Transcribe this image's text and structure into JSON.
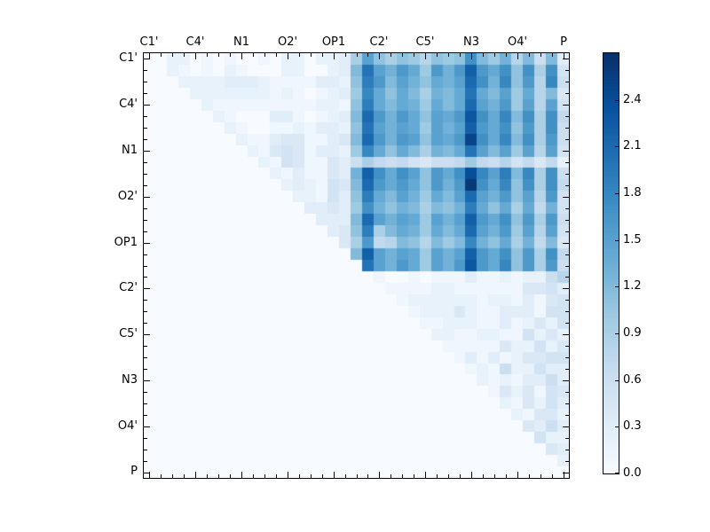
{
  "figure": {
    "background": "#ffffff",
    "title": ""
  },
  "chart_data": {
    "type": "heatmap",
    "n": 37,
    "orientation": "upper-triangle",
    "x_axis": {
      "tick_labels": [
        "C1'",
        "C4'",
        "N1",
        "O2'",
        "OP1",
        "C2'",
        "C5'",
        "N3",
        "O4'",
        "P"
      ],
      "tick_indices": [
        0,
        4,
        8,
        12,
        16,
        20,
        24,
        28,
        32,
        36
      ],
      "minor_tick_every": 1,
      "labels_side": "top"
    },
    "y_axis": {
      "tick_labels": [
        "C1'",
        "C4'",
        "N1",
        "O2'",
        "OP1",
        "C2'",
        "C5'",
        "N3",
        "O4'",
        "P"
      ],
      "tick_indices": [
        0,
        4,
        8,
        12,
        16,
        20,
        24,
        28,
        32,
        36
      ],
      "minor_tick_every": 1,
      "labels_side": "left"
    },
    "colorbar": {
      "vmin": 0.0,
      "vmax": 2.7,
      "tick_values": [
        0.0,
        0.3,
        0.6,
        0.9,
        1.2,
        1.5,
        1.8,
        2.1,
        2.4
      ],
      "tick_labels": [
        "0.0",
        "0.3",
        "0.6",
        "0.9",
        "1.2",
        "1.5",
        "1.8",
        "2.1",
        "2.4"
      ],
      "colormap": "Blues",
      "colormap_hex": [
        "#f7fbff",
        "#deebf7",
        "#c6dbef",
        "#9ecae1",
        "#6baed6",
        "#4292c6",
        "#2171b5",
        "#08519c",
        "#08306b"
      ]
    },
    "matrix": [
      [
        0,
        0,
        0.2,
        0.2,
        0,
        0.1,
        0,
        0.1,
        0,
        0,
        0.1,
        0,
        0.2,
        0.2,
        0,
        0.2,
        0.2,
        0.3,
        0.9,
        1.5,
        1.1,
        0.9,
        1.1,
        1.0,
        0.8,
        1.1,
        1.0,
        1.1,
        1.7,
        1.2,
        1.0,
        1.3,
        0.8,
        1.2,
        0.6,
        1.2,
        0.3
      ],
      [
        0,
        0,
        0.2,
        0.1,
        0,
        0.1,
        0,
        0.2,
        0.1,
        0,
        0,
        0,
        0.2,
        0.2,
        0,
        0,
        0.2,
        0.3,
        1.2,
        2.0,
        1.5,
        1.3,
        1.6,
        1.4,
        1.0,
        1.6,
        1.3,
        1.6,
        2.2,
        1.6,
        1.4,
        1.7,
        1.1,
        1.7,
        0.9,
        1.7,
        0.5
      ],
      [
        0,
        0,
        0,
        0.2,
        0.2,
        0.2,
        0.2,
        0.3,
        0.3,
        0.3,
        0.2,
        0.1,
        0.1,
        0.1,
        0.1,
        0.3,
        0.3,
        0.2,
        1.1,
        1.9,
        1.6,
        1.2,
        1.5,
        1.3,
        1.1,
        1.4,
        1.3,
        1.5,
        2.1,
        1.7,
        1.3,
        1.8,
        1.1,
        1.6,
        0.8,
        1.8,
        0.6
      ],
      [
        0,
        0,
        0,
        0,
        0.2,
        0.2,
        0.2,
        0.2,
        0.2,
        0.2,
        0.2,
        0.1,
        0.2,
        0.1,
        0,
        0.1,
        0.2,
        0.3,
        1.0,
        1.8,
        1.4,
        1.1,
        1.4,
        1.2,
        0.9,
        1.3,
        1.2,
        1.4,
        2.0,
        1.4,
        1.2,
        1.5,
        1.0,
        1.4,
        0.8,
        1.2,
        0.4
      ],
      [
        0,
        0,
        0,
        0,
        0,
        0.2,
        0.1,
        0.1,
        0.1,
        0.1,
        0.1,
        0.1,
        0.1,
        0.1,
        0.1,
        0.2,
        0.2,
        0.1,
        1.1,
        1.9,
        1.4,
        1.2,
        1.4,
        1.3,
        1.0,
        1.4,
        1.2,
        1.4,
        2.1,
        1.5,
        1.3,
        1.6,
        1.0,
        1.5,
        0.8,
        1.5,
        0.5
      ],
      [
        0,
        0,
        0,
        0,
        0,
        0,
        0.2,
        0.1,
        0,
        0,
        0,
        0.3,
        0.3,
        0.1,
        0,
        0.1,
        0.2,
        0.3,
        1.2,
        2.1,
        1.6,
        1.3,
        1.6,
        1.4,
        1.1,
        1.5,
        1.4,
        1.6,
        2.3,
        1.7,
        1.4,
        1.8,
        1.2,
        1.7,
        0.9,
        1.7,
        0.7
      ],
      [
        0,
        0,
        0,
        0,
        0,
        0,
        0,
        0.2,
        0.1,
        0,
        0,
        0.1,
        0.1,
        0.2,
        0.1,
        0.3,
        0.3,
        0.2,
        1.1,
        2.0,
        1.5,
        1.3,
        1.5,
        1.4,
        1.0,
        1.5,
        1.3,
        1.5,
        2.2,
        1.6,
        1.4,
        1.7,
        1.1,
        1.6,
        0.9,
        1.7,
        0.6
      ],
      [
        0,
        0,
        0,
        0,
        0,
        0,
        0,
        0,
        0.2,
        0.1,
        0.1,
        0.3,
        0.4,
        0.4,
        0.1,
        0.1,
        0.3,
        0.4,
        1.2,
        2.1,
        1.6,
        1.3,
        1.6,
        1.5,
        1.1,
        1.5,
        1.4,
        1.6,
        2.5,
        1.7,
        1.4,
        1.8,
        1.2,
        1.7,
        0.9,
        1.6,
        0.6
      ],
      [
        0,
        0,
        0,
        0,
        0,
        0,
        0,
        0,
        0,
        0.2,
        0.1,
        0.4,
        0.5,
        0.4,
        0.1,
        0.3,
        0.3,
        0.2,
        1.0,
        1.8,
        1.4,
        1.1,
        1.4,
        1.2,
        0.9,
        1.3,
        1.2,
        1.4,
        2.0,
        1.5,
        1.2,
        1.5,
        1.0,
        1.5,
        0.8,
        1.5,
        0.5
      ],
      [
        0,
        0,
        0,
        0,
        0,
        0,
        0,
        0,
        0,
        0,
        0.2,
        0.1,
        0.5,
        0.4,
        0.1,
        0.1,
        0.4,
        0.3,
        0.6,
        0.9,
        0.7,
        0.6,
        0.7,
        0.5,
        0.4,
        0.6,
        0.6,
        0.7,
        1.0,
        0.7,
        0.6,
        0.8,
        0.5,
        0.7,
        0.4,
        0.7,
        0.2
      ],
      [
        0,
        0,
        0,
        0,
        0,
        0,
        0,
        0,
        0,
        0,
        0,
        0.2,
        0.1,
        0.3,
        0.1,
        0.1,
        0.4,
        0.3,
        1.3,
        2.2,
        1.7,
        1.4,
        1.7,
        1.5,
        1.1,
        1.6,
        1.4,
        1.7,
        2.4,
        1.8,
        1.5,
        1.9,
        1.2,
        1.8,
        0.9,
        1.7,
        0.6
      ],
      [
        0,
        0,
        0,
        0,
        0,
        0,
        0,
        0,
        0,
        0,
        0,
        0,
        0.2,
        0.3,
        0.2,
        0.1,
        0.5,
        0.4,
        1.2,
        2.1,
        1.6,
        1.4,
        1.6,
        1.4,
        1.1,
        1.6,
        1.3,
        1.6,
        2.6,
        1.7,
        1.4,
        1.8,
        1.1,
        1.7,
        0.9,
        1.7,
        0.7
      ],
      [
        0,
        0,
        0,
        0,
        0,
        0,
        0,
        0,
        0,
        0,
        0,
        0,
        0,
        0.2,
        0.2,
        0.1,
        0.5,
        0.3,
        1.1,
        1.9,
        1.4,
        1.2,
        1.5,
        1.3,
        1.0,
        1.4,
        1.2,
        1.5,
        2.1,
        1.5,
        1.3,
        1.6,
        1.1,
        1.5,
        0.8,
        1.6,
        0.5
      ],
      [
        0,
        0,
        0,
        0,
        0,
        0,
        0,
        0,
        0,
        0,
        0,
        0,
        0,
        0,
        0.3,
        0.3,
        0.4,
        0.3,
        1.0,
        1.7,
        1.3,
        1.1,
        1.3,
        1.2,
        0.9,
        1.2,
        1.1,
        1.3,
        1.9,
        1.4,
        1.1,
        1.4,
        0.9,
        1.4,
        0.7,
        1.3,
        0.5
      ],
      [
        0,
        0,
        0,
        0,
        0,
        0,
        0,
        0,
        0,
        0,
        0,
        0,
        0,
        0,
        0,
        0.3,
        0.3,
        0.3,
        1.2,
        2.1,
        1.5,
        1.3,
        1.5,
        1.4,
        1.0,
        1.5,
        1.3,
        1.5,
        2.2,
        1.6,
        1.4,
        1.7,
        1.1,
        1.6,
        0.9,
        1.6,
        0.6
      ],
      [
        0,
        0,
        0,
        0,
        0,
        0,
        0,
        0,
        0,
        0,
        0,
        0,
        0,
        0,
        0,
        0,
        0.3,
        0.4,
        1.1,
        1.9,
        0.9,
        1.2,
        1.4,
        1.3,
        1.0,
        1.4,
        1.2,
        1.4,
        2.1,
        1.5,
        1.3,
        1.6,
        1.0,
        1.5,
        0.8,
        1.5,
        0.5
      ],
      [
        0,
        0,
        0,
        0,
        0,
        0,
        0,
        0,
        0,
        0,
        0,
        0,
        0,
        0,
        0,
        0,
        0,
        0.4,
        0.9,
        1.6,
        0.7,
        0.8,
        1.2,
        1.1,
        0.8,
        1.2,
        1.0,
        1.2,
        1.8,
        1.3,
        1.1,
        1.4,
        0.9,
        1.3,
        0.7,
        1.2,
        0.4
      ],
      [
        0,
        0,
        0,
        0,
        0,
        0,
        0,
        0,
        0,
        0,
        0,
        0,
        0,
        0,
        0,
        0,
        0,
        0,
        1.2,
        2.2,
        1.5,
        1.3,
        1.5,
        1.4,
        1.0,
        1.5,
        1.3,
        1.5,
        2.2,
        1.6,
        1.4,
        1.7,
        1.1,
        1.6,
        0.9,
        1.7,
        0.7
      ],
      [
        0,
        0,
        0,
        0,
        0,
        0,
        0,
        0,
        0,
        0,
        0,
        0,
        0,
        0,
        0,
        0,
        0,
        0,
        0,
        2.0,
        1.5,
        1.3,
        1.6,
        1.4,
        1.0,
        1.5,
        1.3,
        1.6,
        2.3,
        1.6,
        1.4,
        1.8,
        1.1,
        1.6,
        0.9,
        1.6,
        0.6
      ],
      [
        0,
        0,
        0,
        0,
        0,
        0,
        0,
        0,
        0,
        0,
        0,
        0,
        0,
        0,
        0,
        0,
        0,
        0,
        0,
        0,
        0.1,
        0,
        0,
        0.1,
        0,
        0.1,
        0.1,
        0.1,
        0.3,
        0.1,
        0.1,
        0.2,
        0.1,
        0.2,
        0.2,
        0.6,
        0.8
      ],
      [
        0,
        0,
        0,
        0,
        0,
        0,
        0,
        0,
        0,
        0,
        0,
        0,
        0,
        0,
        0,
        0,
        0,
        0,
        0,
        0,
        0,
        0.1,
        0.1,
        0.1,
        0.1,
        0.2,
        0.2,
        0.1,
        0.1,
        0.1,
        0.1,
        0.1,
        0.1,
        0.4,
        0.4,
        0.5,
        0.3
      ],
      [
        0,
        0,
        0,
        0,
        0,
        0,
        0,
        0,
        0,
        0,
        0,
        0,
        0,
        0,
        0,
        0,
        0,
        0,
        0,
        0,
        0,
        0,
        0.1,
        0.2,
        0.2,
        0.2,
        0.2,
        0.2,
        0.2,
        0.1,
        0.2,
        0.2,
        0.1,
        0.3,
        0.1,
        0.4,
        0.5
      ],
      [
        0,
        0,
        0,
        0,
        0,
        0,
        0,
        0,
        0,
        0,
        0,
        0,
        0,
        0,
        0,
        0,
        0,
        0,
        0,
        0,
        0,
        0,
        0,
        0.1,
        0.2,
        0.2,
        0.2,
        0.4,
        0.2,
        0.1,
        0.1,
        0.3,
        0.3,
        0.3,
        0.1,
        0.5,
        0.5
      ],
      [
        0,
        0,
        0,
        0,
        0,
        0,
        0,
        0,
        0,
        0,
        0,
        0,
        0,
        0,
        0,
        0,
        0,
        0,
        0,
        0,
        0,
        0,
        0,
        0,
        0.1,
        0.1,
        0.2,
        0.2,
        0.2,
        0.1,
        0.1,
        0.3,
        0.1,
        0.2,
        0.4,
        0.2,
        0.5
      ],
      [
        0,
        0,
        0,
        0,
        0,
        0,
        0,
        0,
        0,
        0,
        0,
        0,
        0,
        0,
        0,
        0,
        0,
        0,
        0,
        0,
        0,
        0,
        0,
        0,
        0,
        0.2,
        0.2,
        0.1,
        0.1,
        0.2,
        0.2,
        0.1,
        0.1,
        0.5,
        0.2,
        0.4,
        0.2
      ],
      [
        0,
        0,
        0,
        0,
        0,
        0,
        0,
        0,
        0,
        0,
        0,
        0,
        0,
        0,
        0,
        0,
        0,
        0,
        0,
        0,
        0,
        0,
        0,
        0,
        0,
        0,
        0.1,
        0.1,
        0.1,
        0.1,
        0.1,
        0.4,
        0.2,
        0.2,
        0.5,
        0.2,
        0.4
      ],
      [
        0,
        0,
        0,
        0,
        0,
        0,
        0,
        0,
        0,
        0,
        0,
        0,
        0,
        0,
        0,
        0,
        0,
        0,
        0,
        0,
        0,
        0,
        0,
        0,
        0,
        0,
        0,
        0.1,
        0.3,
        0.1,
        0.3,
        0.1,
        0.2,
        0.4,
        0.4,
        0.5,
        0.5
      ],
      [
        0,
        0,
        0,
        0,
        0,
        0,
        0,
        0,
        0,
        0,
        0,
        0,
        0,
        0,
        0,
        0,
        0,
        0,
        0,
        0,
        0,
        0,
        0,
        0,
        0,
        0,
        0,
        0,
        0.1,
        0.2,
        0.1,
        0.6,
        0.2,
        0.2,
        0.5,
        0.3,
        0.3
      ],
      [
        0,
        0,
        0,
        0,
        0,
        0,
        0,
        0,
        0,
        0,
        0,
        0,
        0,
        0,
        0,
        0,
        0,
        0,
        0,
        0,
        0,
        0,
        0,
        0,
        0,
        0,
        0,
        0,
        0,
        0.2,
        0.1,
        0.2,
        0.1,
        0.3,
        0.3,
        0.6,
        0.3
      ],
      [
        0,
        0,
        0,
        0,
        0,
        0,
        0,
        0,
        0,
        0,
        0,
        0,
        0,
        0,
        0,
        0,
        0,
        0,
        0,
        0,
        0,
        0,
        0,
        0,
        0,
        0,
        0,
        0,
        0,
        0,
        0.1,
        0.4,
        0.2,
        0.4,
        0.1,
        0.5,
        0.4
      ],
      [
        0,
        0,
        0,
        0,
        0,
        0,
        0,
        0,
        0,
        0,
        0,
        0,
        0,
        0,
        0,
        0,
        0,
        0,
        0,
        0,
        0,
        0,
        0,
        0,
        0,
        0,
        0,
        0,
        0,
        0,
        0,
        0.2,
        0.1,
        0.4,
        0.2,
        0.5,
        0.3
      ],
      [
        0,
        0,
        0,
        0,
        0,
        0,
        0,
        0,
        0,
        0,
        0,
        0,
        0,
        0,
        0,
        0,
        0,
        0,
        0,
        0,
        0,
        0,
        0,
        0,
        0,
        0,
        0,
        0,
        0,
        0,
        0,
        0,
        0.2,
        0.1,
        0.4,
        0.4,
        0.2
      ],
      [
        0,
        0,
        0,
        0,
        0,
        0,
        0,
        0,
        0,
        0,
        0,
        0,
        0,
        0,
        0,
        0,
        0,
        0,
        0,
        0,
        0,
        0,
        0,
        0,
        0,
        0,
        0,
        0,
        0,
        0,
        0,
        0,
        0,
        0.4,
        0.3,
        0.6,
        0.3
      ],
      [
        0,
        0,
        0,
        0,
        0,
        0,
        0,
        0,
        0,
        0,
        0,
        0,
        0,
        0,
        0,
        0,
        0,
        0,
        0,
        0,
        0,
        0,
        0,
        0,
        0,
        0,
        0,
        0,
        0,
        0,
        0,
        0,
        0,
        0,
        0.5,
        0.2,
        0.2
      ],
      [
        0,
        0,
        0,
        0,
        0,
        0,
        0,
        0,
        0,
        0,
        0,
        0,
        0,
        0,
        0,
        0,
        0,
        0,
        0,
        0,
        0,
        0,
        0,
        0,
        0,
        0,
        0,
        0,
        0,
        0,
        0,
        0,
        0,
        0,
        0,
        0.4,
        0.3
      ],
      [
        0,
        0,
        0,
        0,
        0,
        0,
        0,
        0,
        0,
        0,
        0,
        0,
        0,
        0,
        0,
        0,
        0,
        0,
        0,
        0,
        0,
        0,
        0,
        0,
        0,
        0,
        0,
        0,
        0,
        0,
        0,
        0,
        0,
        0,
        0,
        0,
        0.2
      ],
      [
        0,
        0,
        0,
        0,
        0,
        0,
        0,
        0,
        0,
        0,
        0,
        0,
        0,
        0,
        0,
        0,
        0,
        0,
        0,
        0,
        0,
        0,
        0,
        0,
        0,
        0,
        0,
        0,
        0,
        0,
        0,
        0,
        0,
        0,
        0,
        0,
        0
      ]
    ]
  }
}
